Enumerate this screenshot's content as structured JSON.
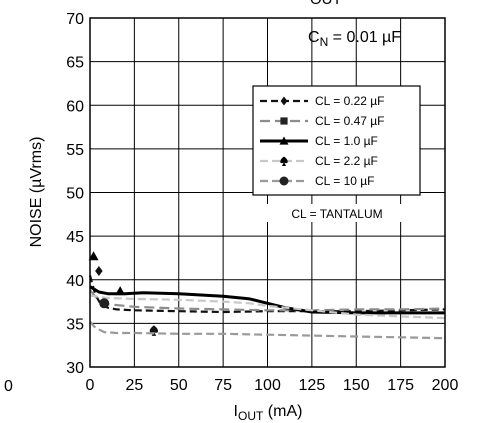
{
  "chart_data": {
    "type": "line",
    "title_fragment": "OUT",
    "stray_tick": "0",
    "xlabel_main": "I",
    "xlabel_sub": "OUT",
    "xlabel_unit": " (mA)",
    "ylabel": "NOISE (µVrms)",
    "xlim": [
      0,
      200
    ],
    "ylim": [
      30,
      70
    ],
    "x_ticks": [
      "0",
      "25",
      "50",
      "75",
      "100",
      "125",
      "150",
      "175",
      "200"
    ],
    "y_ticks": [
      "30",
      "35",
      "40",
      "45",
      "50",
      "55",
      "60",
      "65",
      "70"
    ],
    "grid": true,
    "annotation_cn": {
      "main": "C",
      "sub": "N",
      "rest": " = 0.01 µF"
    },
    "note": "CL = TANTALUM",
    "series": [
      {
        "name": "CL = 0.22 µF",
        "color": "#111111",
        "width": 2.2,
        "dash": "7,4",
        "marker": "diamond",
        "x": [
          0,
          3,
          6,
          10,
          15,
          25,
          50,
          75,
          100,
          125,
          150,
          175,
          200
        ],
        "y": [
          40.5,
          38.3,
          37.2,
          36.8,
          36.6,
          36.5,
          36.4,
          36.3,
          36.4,
          36.4,
          36.4,
          36.5,
          36.6
        ],
        "markers": [
          [
            5,
            41.0
          ]
        ]
      },
      {
        "name": "CL = 0.47 µF",
        "color": "#8c8c8c",
        "width": 2.2,
        "dash": "10,5",
        "marker": "square",
        "x": [
          0,
          5,
          10,
          25,
          50,
          75,
          100,
          125,
          150,
          175,
          200
        ],
        "y": [
          38.8,
          37.6,
          37.2,
          36.9,
          36.7,
          36.6,
          36.5,
          36.5,
          36.6,
          36.6,
          36.7
        ],
        "markers": []
      },
      {
        "name": "CL = 1.0 µF",
        "color": "#000000",
        "width": 3,
        "dash": "",
        "marker": "triangle",
        "x": [
          0,
          5,
          10,
          20,
          30,
          50,
          75,
          90,
          100,
          110,
          125,
          150,
          175,
          200
        ],
        "y": [
          39.2,
          38.6,
          38.4,
          38.4,
          38.5,
          38.4,
          38.1,
          37.8,
          37.3,
          36.8,
          36.3,
          36.2,
          36.2,
          36.2
        ],
        "markers": [
          [
            2,
            42.7
          ],
          [
            17,
            38.7
          ]
        ]
      },
      {
        "name": "CL = 2.2 µF",
        "color": "#c8c8c8",
        "width": 2.2,
        "dash": "8,4",
        "marker": "spade",
        "x": [
          0,
          10,
          25,
          50,
          75,
          90,
          100,
          125,
          150,
          175,
          200
        ],
        "y": [
          38.2,
          37.9,
          37.8,
          37.7,
          37.5,
          37.3,
          37.0,
          36.5,
          36.0,
          35.8,
          35.6
        ],
        "markers": [
          [
            36,
            34.2
          ]
        ]
      },
      {
        "name": "CL = 10 µF",
        "color": "#9a9a9a",
        "width": 2.2,
        "dash": "8,4",
        "marker": "circle",
        "x": [
          0,
          3,
          8,
          15,
          25,
          50,
          75,
          100,
          125,
          150,
          175,
          200
        ],
        "y": [
          35.2,
          34.5,
          34.0,
          33.9,
          33.9,
          33.8,
          33.8,
          33.7,
          33.6,
          33.5,
          33.4,
          33.3
        ],
        "markers": [
          [
            8,
            37.3
          ]
        ]
      }
    ]
  }
}
